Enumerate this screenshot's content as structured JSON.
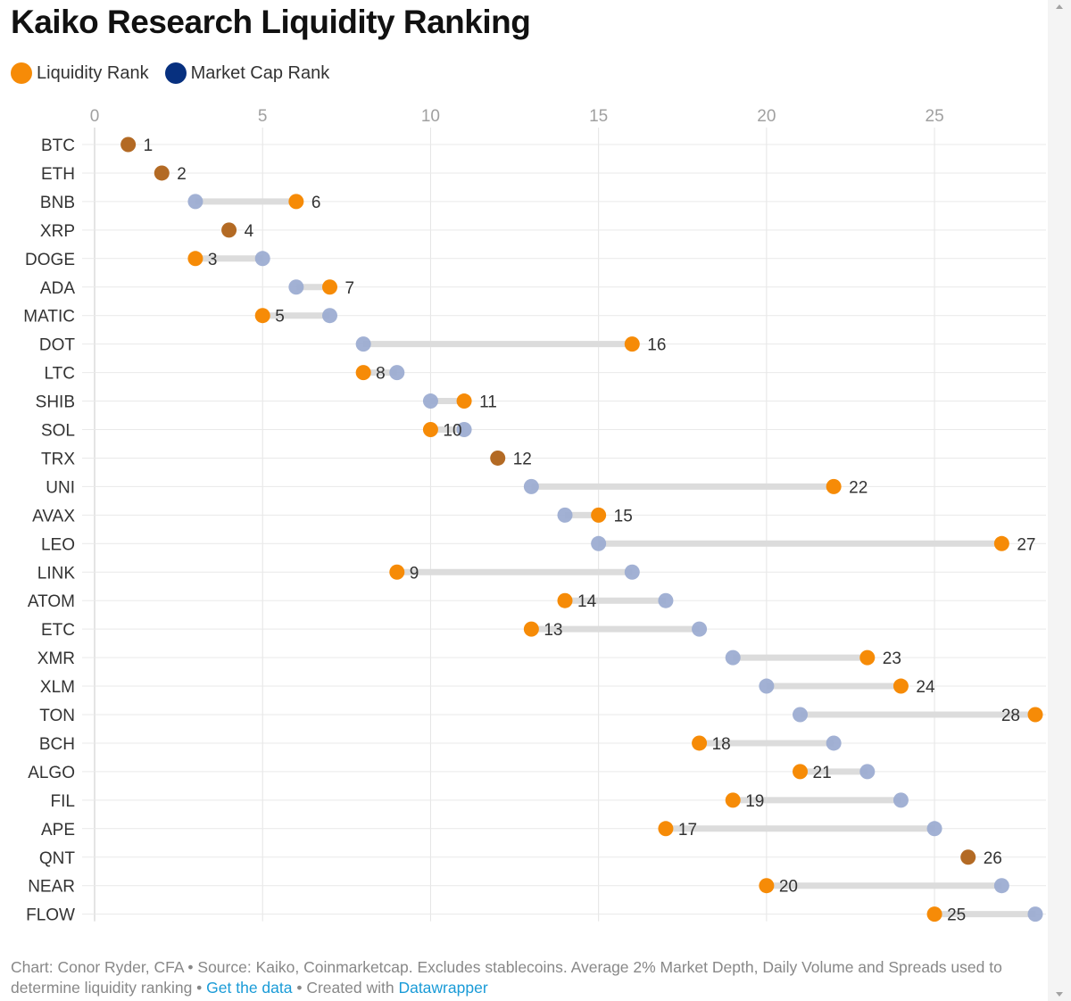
{
  "title": "Kaiko Research Liquidity Ranking",
  "legend": [
    {
      "label": "Liquidity Rank",
      "color": "#f68b07"
    },
    {
      "label": "Market Cap Rank",
      "color": "#07307f"
    }
  ],
  "footer": {
    "text": "Chart: Conor Ryder, CFA • Source: Kaiko, Coinmarketcap. Excludes stablecoins. Average 2% Market Depth, Daily Volume and Spreads used to determine liquidity ranking • ",
    "link_data": "Get the data",
    "separator": " • Created with ",
    "link_tool": "Datawrapper"
  },
  "chart_data": {
    "type": "dot-range",
    "title": "Kaiko Research Liquidity Ranking",
    "xlim": [
      0,
      28
    ],
    "xticks": [
      0,
      5,
      10,
      15,
      20,
      25
    ],
    "legend_position": "top-left",
    "grid": true,
    "colors": {
      "liquidity": "#f68b07",
      "market_cap": "#9aaad0",
      "same": "#b36a24",
      "connector": "#dcdcdc"
    },
    "series": [
      {
        "name": "Liquidity Rank",
        "key": "liquidity"
      },
      {
        "name": "Market Cap Rank",
        "key": "market_cap"
      }
    ],
    "rows": [
      {
        "coin": "BTC",
        "market_cap": 1,
        "liquidity": 1
      },
      {
        "coin": "ETH",
        "market_cap": 2,
        "liquidity": 2
      },
      {
        "coin": "BNB",
        "market_cap": 3,
        "liquidity": 6
      },
      {
        "coin": "XRP",
        "market_cap": 4,
        "liquidity": 4
      },
      {
        "coin": "DOGE",
        "market_cap": 5,
        "liquidity": 3
      },
      {
        "coin": "ADA",
        "market_cap": 6,
        "liquidity": 7
      },
      {
        "coin": "MATIC",
        "market_cap": 7,
        "liquidity": 5
      },
      {
        "coin": "DOT",
        "market_cap": 8,
        "liquidity": 16
      },
      {
        "coin": "LTC",
        "market_cap": 9,
        "liquidity": 8
      },
      {
        "coin": "SHIB",
        "market_cap": 10,
        "liquidity": 11
      },
      {
        "coin": "SOL",
        "market_cap": 11,
        "liquidity": 10
      },
      {
        "coin": "TRX",
        "market_cap": 12,
        "liquidity": 12
      },
      {
        "coin": "UNI",
        "market_cap": 13,
        "liquidity": 22
      },
      {
        "coin": "AVAX",
        "market_cap": 14,
        "liquidity": 15
      },
      {
        "coin": "LEO",
        "market_cap": 15,
        "liquidity": 27
      },
      {
        "coin": "LINK",
        "market_cap": 16,
        "liquidity": 9
      },
      {
        "coin": "ATOM",
        "market_cap": 17,
        "liquidity": 14
      },
      {
        "coin": "ETC",
        "market_cap": 18,
        "liquidity": 13
      },
      {
        "coin": "XMR",
        "market_cap": 19,
        "liquidity": 23
      },
      {
        "coin": "XLM",
        "market_cap": 20,
        "liquidity": 24
      },
      {
        "coin": "TON",
        "market_cap": 21,
        "liquidity": 28
      },
      {
        "coin": "BCH",
        "market_cap": 22,
        "liquidity": 18
      },
      {
        "coin": "ALGO",
        "market_cap": 23,
        "liquidity": 21
      },
      {
        "coin": "FIL",
        "market_cap": 24,
        "liquidity": 19
      },
      {
        "coin": "APE",
        "market_cap": 25,
        "liquidity": 17
      },
      {
        "coin": "QNT",
        "market_cap": 26,
        "liquidity": 26
      },
      {
        "coin": "NEAR",
        "market_cap": 27,
        "liquidity": 20
      },
      {
        "coin": "FLOW",
        "market_cap": 28,
        "liquidity": 25
      }
    ]
  }
}
